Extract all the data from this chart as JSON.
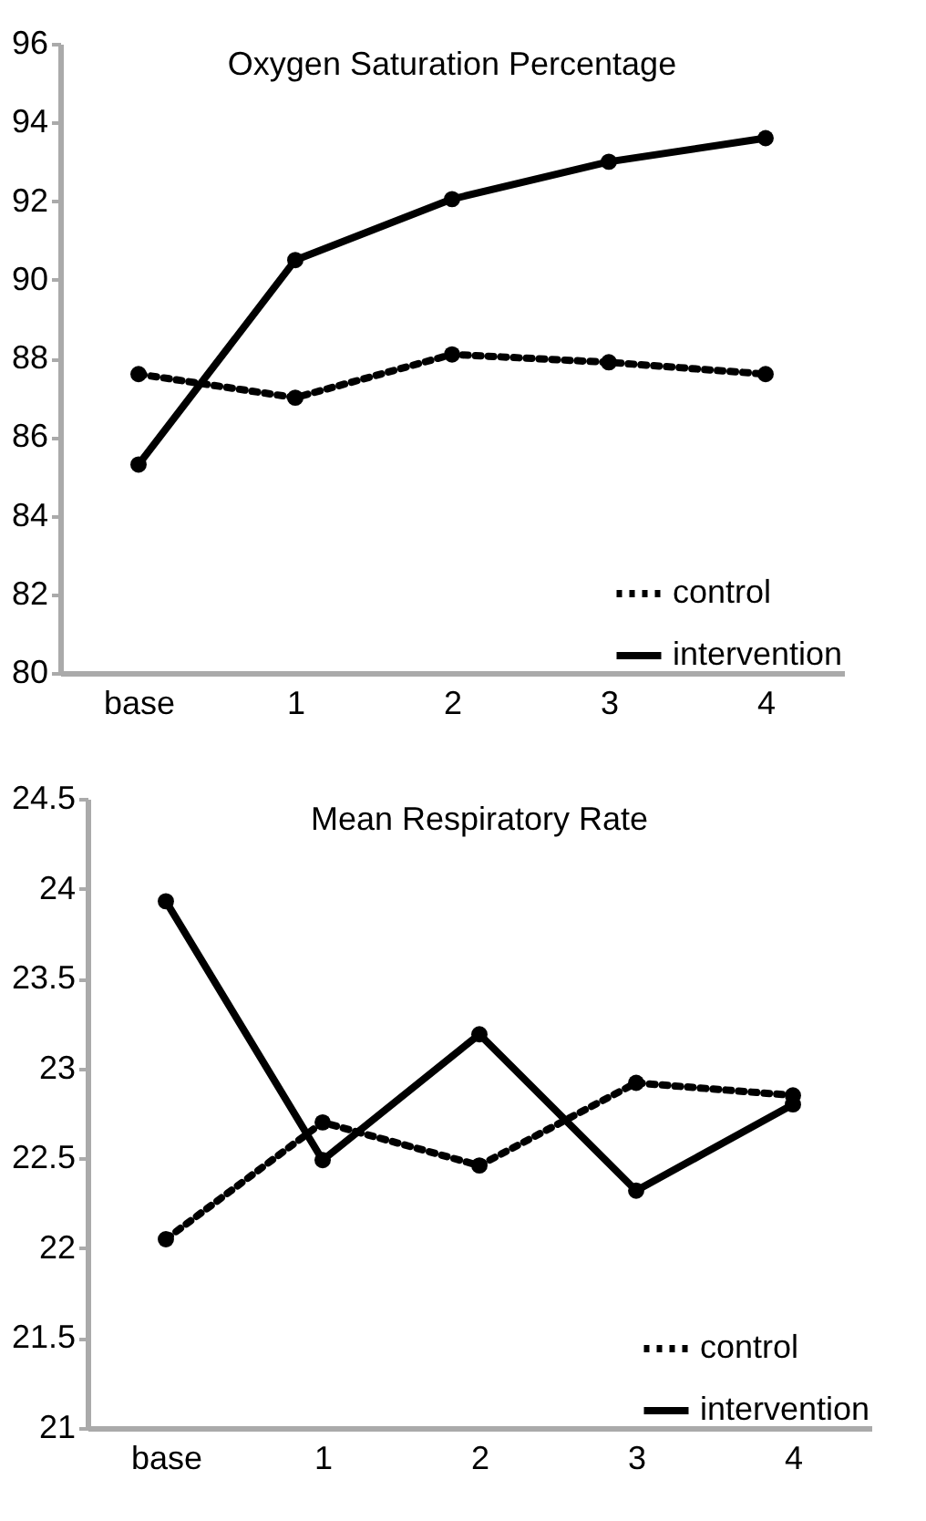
{
  "chart_data": [
    {
      "type": "line",
      "title": "Oxygen Saturation Percentage",
      "categories": [
        "base",
        "1",
        "2",
        "3",
        "4"
      ],
      "series": [
        {
          "name": "control",
          "color": "#000000",
          "line_style": "dotted",
          "values": [
            87.6,
            87.0,
            88.1,
            87.9,
            87.6
          ]
        },
        {
          "name": "intervention",
          "color": "#000000",
          "line_style": "solid",
          "values": [
            85.3,
            90.5,
            92.05,
            93.0,
            93.6
          ]
        }
      ],
      "ylim": [
        80,
        96
      ],
      "yticks": [
        80,
        82,
        84,
        86,
        88,
        90,
        92,
        94,
        96
      ],
      "grid": false,
      "legend": "bottom right",
      "marker": "circle"
    },
    {
      "type": "line",
      "title": "Mean Respiratory Rate",
      "categories": [
        "base",
        "1",
        "2",
        "3",
        "4"
      ],
      "series": [
        {
          "name": "control",
          "color": "#000000",
          "line_style": "dotted",
          "values": [
            22.05,
            22.7,
            22.46,
            22.92,
            22.85
          ]
        },
        {
          "name": "intervention",
          "color": "#000000",
          "line_style": "solid",
          "values": [
            23.93,
            22.49,
            23.19,
            22.32,
            22.8
          ]
        }
      ],
      "ylim": [
        21,
        24.5
      ],
      "yticks": [
        21,
        21.5,
        22,
        22.5,
        23,
        23.5,
        24,
        24.5
      ],
      "grid": false,
      "legend": "bottom right",
      "marker": "circle"
    }
  ]
}
